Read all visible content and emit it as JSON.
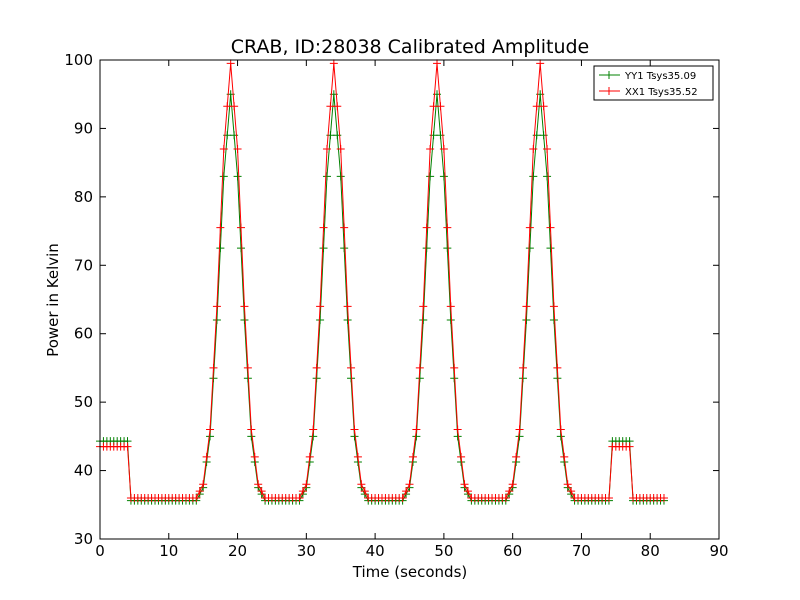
{
  "chart_data": {
    "type": "line",
    "title": "CRAB, ID:28038 Calibrated Amplitude",
    "xlabel": "Time (seconds)",
    "ylabel": "Power in Kelvin",
    "xlim": [
      0,
      90
    ],
    "ylim": [
      30,
      100
    ],
    "x_ticks": [
      "0",
      "10",
      "20",
      "30",
      "40",
      "50",
      "60",
      "70",
      "80",
      "90"
    ],
    "y_ticks": [
      "30",
      "40",
      "50",
      "60",
      "70",
      "80",
      "90",
      "100"
    ],
    "grid": false,
    "legend_position": "top-right",
    "marker": "+",
    "sample_interval_s": 0.5,
    "series": [
      {
        "name": "YY1 Tsys35.09",
        "color": "#008000",
        "baseline": 35.6,
        "cal_level": 44.3,
        "peak": 95.0,
        "points": [
          [
            0,
            44.3
          ],
          [
            4,
            44.3
          ],
          [
            4.5,
            35.6
          ],
          [
            14,
            35.6
          ],
          [
            15,
            37.5
          ],
          [
            16,
            45.0
          ],
          [
            17,
            62.0
          ],
          [
            18,
            83.0
          ],
          [
            19,
            95.0
          ],
          [
            20,
            83.0
          ],
          [
            21,
            62.0
          ],
          [
            22,
            45.0
          ],
          [
            23,
            37.5
          ],
          [
            24,
            35.6
          ],
          [
            29,
            35.6
          ],
          [
            30,
            37.5
          ],
          [
            31,
            45.0
          ],
          [
            32,
            62.0
          ],
          [
            33,
            83.0
          ],
          [
            34,
            95.0
          ],
          [
            35,
            83.0
          ],
          [
            36,
            62.0
          ],
          [
            37,
            45.0
          ],
          [
            38,
            37.5
          ],
          [
            39,
            35.6
          ],
          [
            44,
            35.6
          ],
          [
            45,
            37.5
          ],
          [
            46,
            45.0
          ],
          [
            47,
            62.0
          ],
          [
            48,
            83.0
          ],
          [
            49,
            95.0
          ],
          [
            50,
            83.0
          ],
          [
            51,
            62.0
          ],
          [
            52,
            45.0
          ],
          [
            53,
            37.5
          ],
          [
            54,
            35.6
          ],
          [
            59,
            35.6
          ],
          [
            60,
            37.5
          ],
          [
            61,
            45.0
          ],
          [
            62,
            62.0
          ],
          [
            63,
            83.0
          ],
          [
            64,
            95.0
          ],
          [
            65,
            83.0
          ],
          [
            66,
            62.0
          ],
          [
            67,
            45.0
          ],
          [
            68,
            37.5
          ],
          [
            69,
            35.6
          ],
          [
            74,
            35.6
          ],
          [
            74.5,
            44.3
          ],
          [
            77,
            44.3
          ],
          [
            77.5,
            35.6
          ],
          [
            82,
            35.6
          ]
        ]
      },
      {
        "name": "XX1 Tsys35.52",
        "color": "#ff0000",
        "baseline": 36.0,
        "cal_level": 43.5,
        "peak": 99.5,
        "points": [
          [
            0,
            43.5
          ],
          [
            4,
            43.5
          ],
          [
            4.5,
            36.0
          ],
          [
            14,
            36.0
          ],
          [
            15,
            38.0
          ],
          [
            16,
            46.0
          ],
          [
            17,
            64.0
          ],
          [
            18,
            87.0
          ],
          [
            19,
            99.5
          ],
          [
            20,
            87.0
          ],
          [
            21,
            64.0
          ],
          [
            22,
            46.0
          ],
          [
            23,
            38.0
          ],
          [
            24,
            36.0
          ],
          [
            29,
            36.0
          ],
          [
            30,
            38.0
          ],
          [
            31,
            46.0
          ],
          [
            32,
            64.0
          ],
          [
            33,
            87.0
          ],
          [
            34,
            99.5
          ],
          [
            35,
            87.0
          ],
          [
            36,
            64.0
          ],
          [
            37,
            46.0
          ],
          [
            38,
            38.0
          ],
          [
            39,
            36.0
          ],
          [
            44,
            36.0
          ],
          [
            45,
            38.0
          ],
          [
            46,
            46.0
          ],
          [
            47,
            64.0
          ],
          [
            48,
            87.0
          ],
          [
            49,
            99.5
          ],
          [
            50,
            87.0
          ],
          [
            51,
            64.0
          ],
          [
            52,
            46.0
          ],
          [
            53,
            38.0
          ],
          [
            54,
            36.0
          ],
          [
            59,
            36.0
          ],
          [
            60,
            38.0
          ],
          [
            61,
            46.0
          ],
          [
            62,
            64.0
          ],
          [
            63,
            87.0
          ],
          [
            64,
            99.5
          ],
          [
            65,
            87.0
          ],
          [
            66,
            64.0
          ],
          [
            67,
            46.0
          ],
          [
            68,
            38.0
          ],
          [
            69,
            36.0
          ],
          [
            74,
            36.0
          ],
          [
            74.5,
            43.5
          ],
          [
            77,
            43.5
          ],
          [
            77.5,
            36.0
          ],
          [
            82,
            36.0
          ]
        ]
      }
    ]
  }
}
